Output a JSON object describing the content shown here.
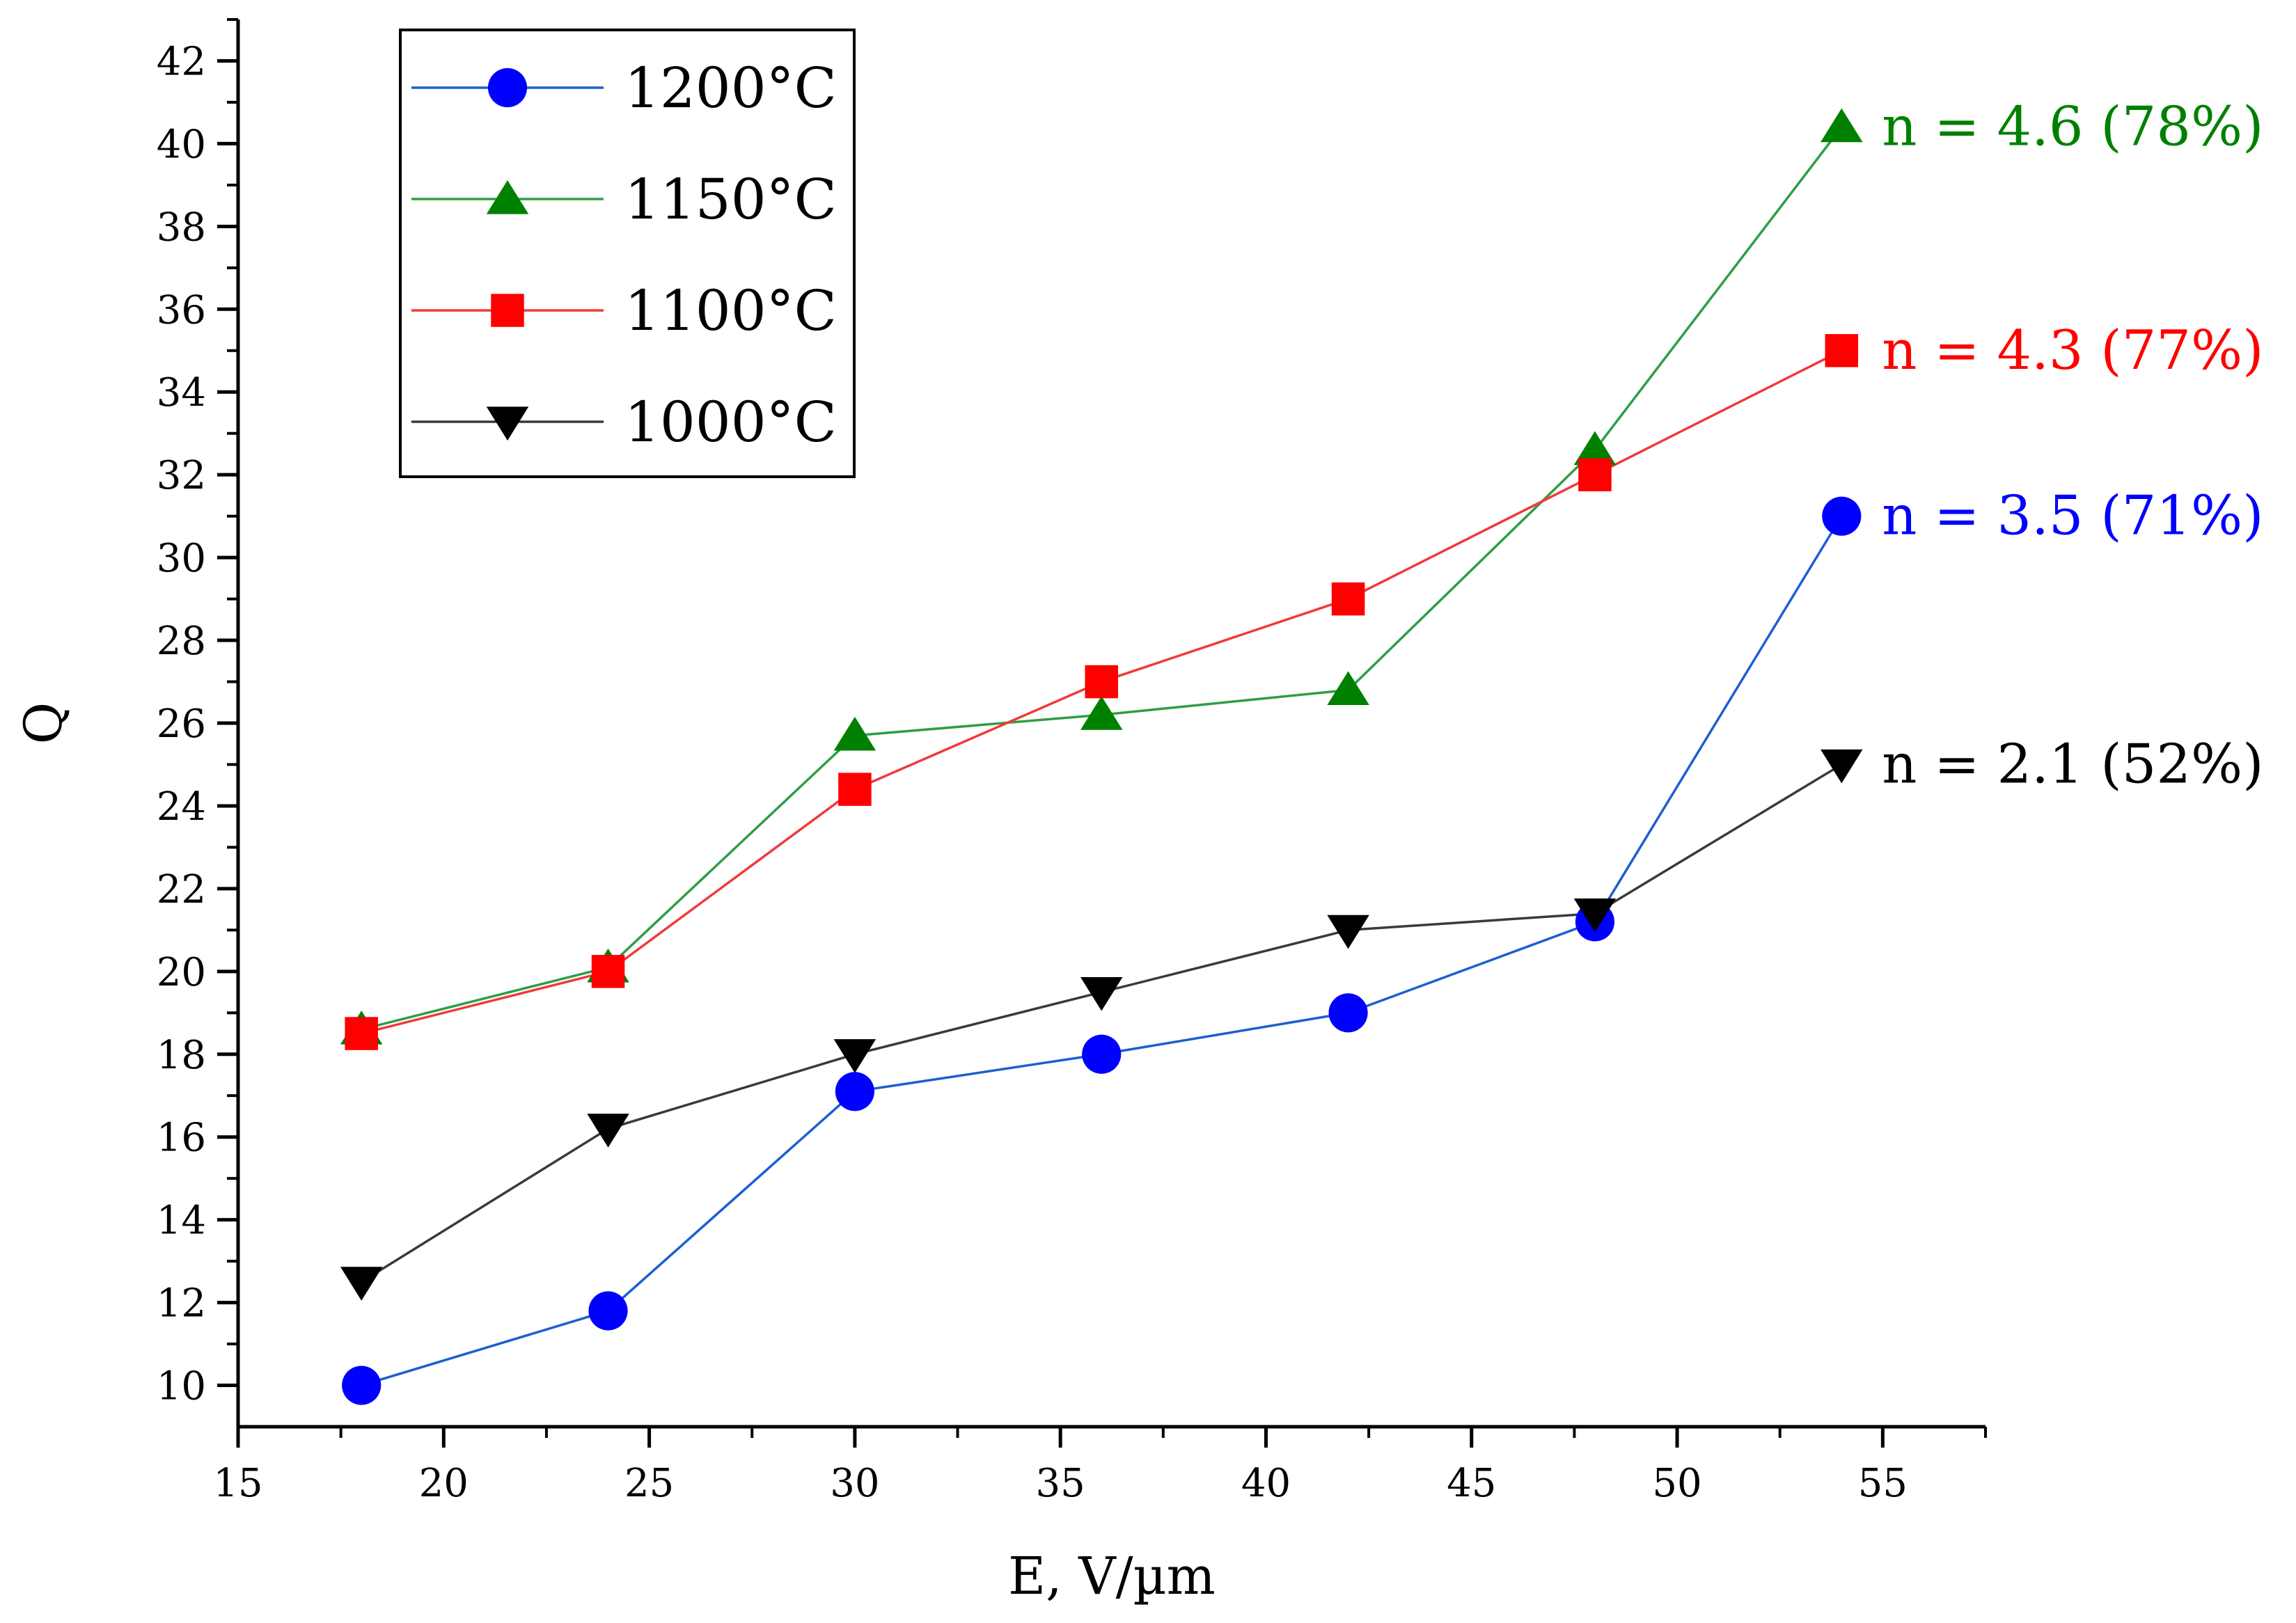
{
  "chart_data": {
    "type": "line",
    "xlabel": "E, V/µm",
    "ylabel": "Q",
    "xlim": [
      15,
      57.5
    ],
    "ylim": [
      9,
      43
    ],
    "x_ticks": [
      15,
      20,
      25,
      30,
      35,
      40,
      45,
      50,
      55
    ],
    "y_ticks": [
      10,
      12,
      14,
      16,
      18,
      20,
      22,
      24,
      26,
      28,
      30,
      32,
      34,
      36,
      38,
      40,
      42
    ],
    "grid": false,
    "legend_position": "top-left",
    "x": [
      18,
      24,
      30,
      36,
      42,
      48,
      54
    ],
    "series": [
      {
        "name": "1200°C",
        "marker": "circle",
        "color": "#0000ff",
        "line_color": "#1c5fd1",
        "values": [
          10,
          11.8,
          17.1,
          18,
          19,
          21.2,
          31
        ]
      },
      {
        "name": "1150°C",
        "marker": "triangle-up",
        "color": "#008000",
        "line_color": "#2e9e46",
        "values": [
          18.6,
          20.1,
          25.7,
          26.2,
          26.8,
          32.6,
          40.4
        ]
      },
      {
        "name": "1100°C",
        "marker": "square",
        "color": "#ff0000",
        "line_color": "#f03a3a",
        "values": [
          18.5,
          20,
          24.4,
          27,
          29,
          32,
          35
        ]
      },
      {
        "name": "1000°C",
        "marker": "triangle-down",
        "color": "#000000",
        "line_color": "#3a3a3a",
        "values": [
          12.5,
          16.2,
          18,
          19.5,
          21,
          21.4,
          25
        ]
      }
    ],
    "annotations": [
      {
        "text": "n = 4.6 (78%)",
        "series": "1150°C",
        "color": "#008000"
      },
      {
        "text": "n = 4.3 (77%)",
        "series": "1100°C",
        "color": "#ff0000"
      },
      {
        "text": "n = 3.5 (71%)",
        "series": "1200°C",
        "color": "#0000ff"
      },
      {
        "text": "n = 2.1 (52%)",
        "series": "1000°C",
        "color": "#000000"
      }
    ]
  }
}
